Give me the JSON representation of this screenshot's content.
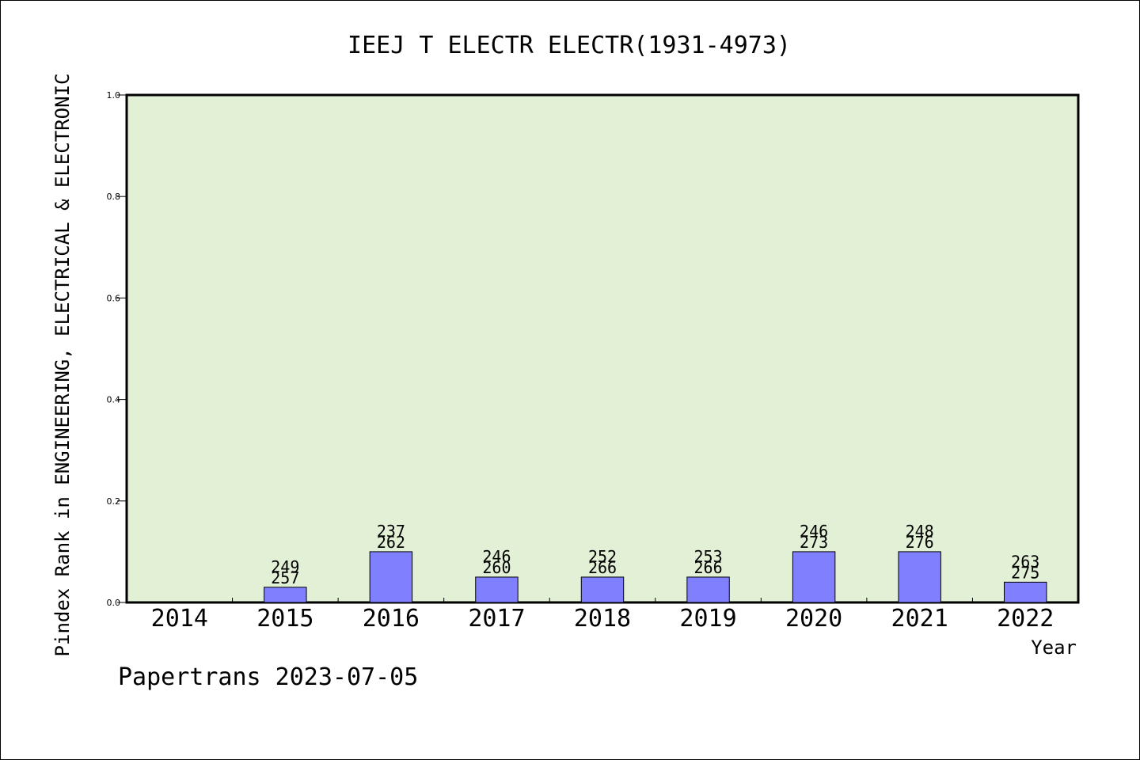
{
  "chart_data": {
    "type": "bar",
    "title": "IEEJ T ELECTR ELECTR(1931-4973)",
    "ylabel": "Pindex Rank in ENGINEERING, ELECTRICAL & ELECTRONIC",
    "xlabel": "Year",
    "ylim": [
      0,
      1.0
    ],
    "yticks": [
      "0.0",
      "0.2",
      "0.4",
      "0.6",
      "0.8",
      "1.0"
    ],
    "categories": [
      "2014",
      "2015",
      "2016",
      "2017",
      "2018",
      "2019",
      "2020",
      "2021",
      "2022"
    ],
    "values": [
      null,
      0.03,
      0.1,
      0.05,
      0.05,
      0.05,
      0.1,
      0.1,
      0.04
    ],
    "labels_top": [
      null,
      "249",
      "237",
      "246",
      "252",
      "253",
      "246",
      "248",
      "263"
    ],
    "labels_bottom": [
      null,
      "257",
      "262",
      "260",
      "266",
      "266",
      "273",
      "276",
      "275"
    ],
    "grid": false,
    "colors": {
      "plot_background": "#e2f0d6",
      "bar_fill": "#8080ff",
      "bar_stroke": "#000000"
    }
  },
  "footer": {
    "credit": "Papertrans 2023-07-05"
  }
}
